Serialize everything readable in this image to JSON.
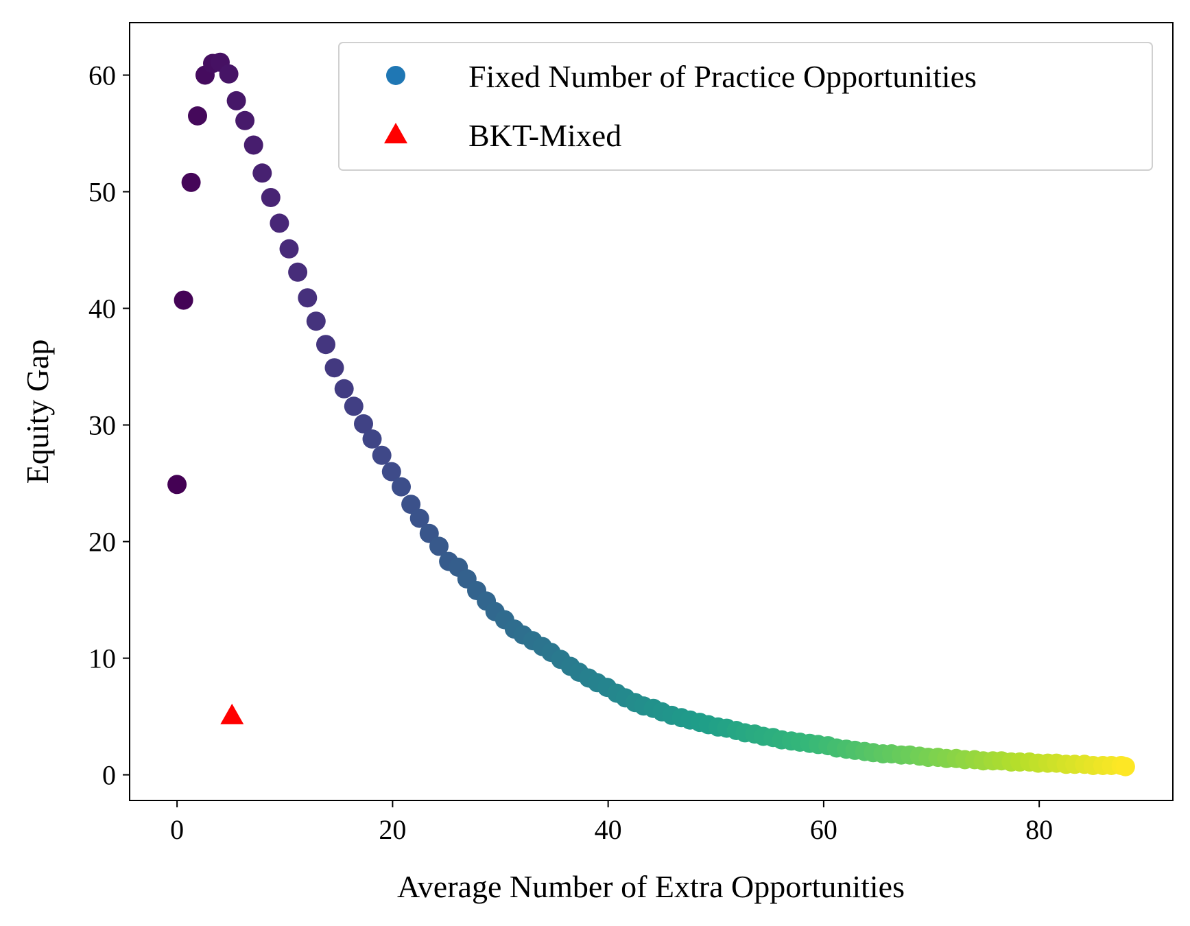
{
  "chart_data": {
    "type": "scatter",
    "title": "",
    "xlabel": "Average Number of Extra Opportunities",
    "ylabel": "Equity Gap",
    "xlim": [
      -4.4,
      92.4
    ],
    "ylim": [
      -2.2,
      64.5
    ],
    "xticks": [
      0,
      20,
      40,
      60,
      80
    ],
    "yticks": [
      0,
      10,
      20,
      30,
      40,
      50,
      60
    ],
    "colormap": "viridis",
    "legend_position": "upper right",
    "series": [
      {
        "name": "Fixed Number of Practice Opportunities",
        "marker": "circle",
        "legend_color": "#1f77b4",
        "x": [
          0.0,
          0.6,
          1.3,
          1.9,
          2.6,
          3.3,
          4.0,
          4.8,
          5.5,
          6.3,
          7.1,
          7.9,
          8.7,
          9.5,
          10.4,
          11.2,
          12.1,
          12.9,
          13.8,
          14.6,
          15.5,
          16.4,
          17.3,
          18.1,
          19.0,
          19.9,
          20.8,
          21.7,
          22.5,
          23.4,
          24.3,
          25.2,
          26.1,
          26.9,
          27.8,
          28.7,
          29.5,
          30.4,
          31.3,
          32.1,
          33.0,
          33.9,
          34.7,
          35.6,
          36.5,
          37.3,
          38.2,
          39.0,
          39.9,
          40.8,
          41.6,
          42.5,
          43.3,
          44.2,
          45.0,
          45.9,
          46.8,
          47.6,
          48.5,
          49.3,
          50.2,
          51.0,
          51.9,
          52.7,
          53.6,
          54.4,
          55.3,
          56.1,
          57.0,
          57.8,
          58.7,
          59.5,
          60.4,
          61.2,
          62.1,
          62.9,
          63.8,
          64.6,
          65.5,
          66.3,
          67.2,
          68.0,
          68.9,
          69.7,
          70.6,
          71.4,
          72.3,
          73.1,
          74.0,
          74.8,
          75.7,
          76.5,
          77.4,
          78.2,
          79.1,
          79.9,
          80.8,
          81.6,
          82.5,
          83.3,
          84.2,
          85.0,
          85.9,
          86.7,
          87.6,
          88.0
        ],
        "y": [
          24.9,
          40.7,
          50.8,
          56.5,
          60.0,
          61.0,
          61.1,
          60.1,
          57.8,
          56.1,
          54.0,
          51.6,
          49.5,
          47.3,
          45.1,
          43.1,
          40.9,
          38.9,
          36.9,
          34.9,
          33.1,
          31.6,
          30.1,
          28.8,
          27.4,
          26.0,
          24.7,
          23.2,
          22.0,
          20.7,
          19.6,
          18.3,
          17.8,
          16.8,
          15.8,
          14.9,
          14.0,
          13.3,
          12.5,
          12.0,
          11.5,
          11.0,
          10.5,
          9.9,
          9.3,
          8.8,
          8.3,
          7.9,
          7.5,
          7.0,
          6.6,
          6.2,
          5.9,
          5.7,
          5.4,
          5.1,
          4.9,
          4.7,
          4.5,
          4.3,
          4.1,
          4.0,
          3.8,
          3.6,
          3.5,
          3.3,
          3.2,
          3.0,
          2.9,
          2.8,
          2.7,
          2.6,
          2.5,
          2.3,
          2.2,
          2.1,
          2.0,
          1.9,
          1.8,
          1.8,
          1.7,
          1.7,
          1.6,
          1.5,
          1.5,
          1.4,
          1.4,
          1.3,
          1.3,
          1.2,
          1.2,
          1.2,
          1.1,
          1.1,
          1.1,
          1.0,
          1.0,
          1.0,
          0.9,
          0.9,
          0.9,
          0.8,
          0.8,
          0.8,
          0.8,
          0.7
        ]
      },
      {
        "name": "BKT-Mixed",
        "marker": "triangle",
        "color": "#ff0000",
        "x": [
          5.1
        ],
        "y": [
          5.1
        ]
      }
    ]
  }
}
